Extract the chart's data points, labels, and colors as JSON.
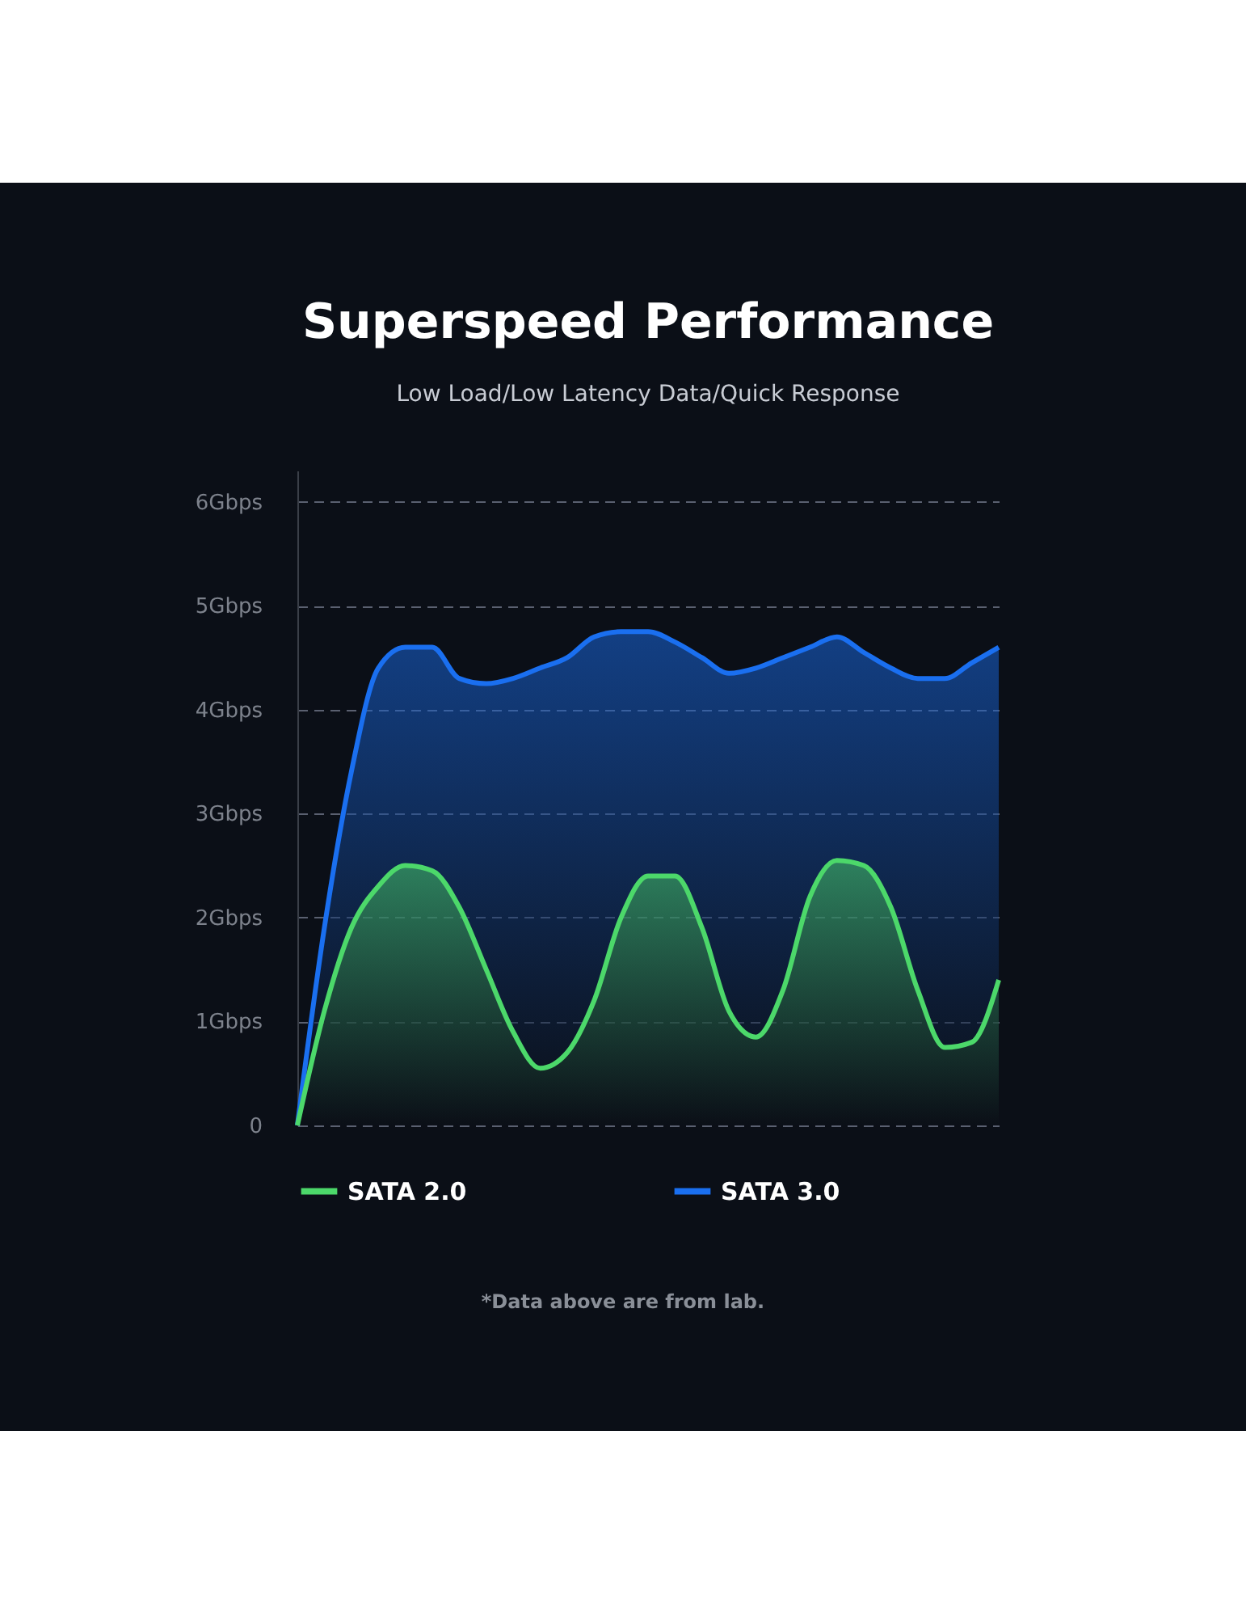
{
  "chart_data": {
    "type": "area",
    "title": "Superspeed Performance",
    "subtitle": "Low Load/Low Latency Data/Quick Response",
    "categories": [
      null,
      null,
      null,
      null,
      null,
      null,
      null,
      null,
      null,
      null,
      null,
      null,
      null,
      null,
      null,
      null,
      null,
      null,
      null,
      null,
      null,
      null,
      null,
      null,
      null,
      null,
      null
    ],
    "series": [
      {
        "name": "SATA 2.0",
        "color": "#4cd86a",
        "values": [
          0,
          1.1,
          1.9,
          2.3,
          2.5,
          2.45,
          2.1,
          1.5,
          0.9,
          0.55,
          0.7,
          1.2,
          2.0,
          2.4,
          2.4,
          1.9,
          1.1,
          0.85,
          1.3,
          2.2,
          2.55,
          2.5,
          2.1,
          1.3,
          0.75,
          0.8,
          1.4
        ]
      },
      {
        "name": "SATA 3.0",
        "color": "#1a6ff0",
        "values": [
          0,
          1.9,
          3.4,
          4.4,
          4.6,
          4.6,
          4.3,
          4.25,
          4.3,
          4.4,
          4.5,
          4.7,
          4.75,
          4.75,
          4.65,
          4.5,
          4.35,
          4.4,
          4.5,
          4.6,
          4.7,
          4.55,
          4.4,
          4.3,
          4.3,
          4.45,
          4.6
        ]
      }
    ],
    "ylim": [
      0,
      6.3
    ],
    "yticks": [
      0,
      {
        "value": 1,
        "label": "1Gbps"
      },
      {
        "value": 2,
        "label": "2Gbps"
      },
      {
        "value": 3,
        "label": "3Gbps"
      },
      {
        "value": 4,
        "label": "4Gbps"
      },
      {
        "value": 5,
        "label": "5Gbps"
      },
      {
        "value": 6,
        "label": "6Gbps"
      }
    ],
    "grid": "y",
    "legend": "bottom",
    "annotations": [
      "*Data above are from lab."
    ]
  }
}
